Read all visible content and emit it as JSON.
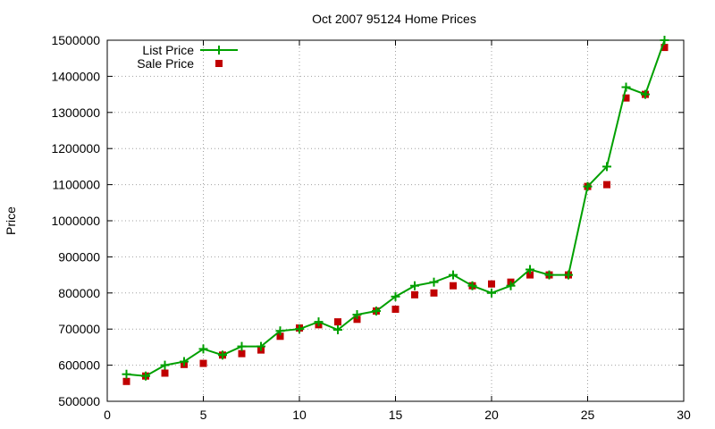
{
  "chart_data": {
    "type": "line",
    "title": "Oct 2007 95124 Home Prices",
    "xlabel": "",
    "ylabel": "Price",
    "xlim": [
      0,
      30
    ],
    "ylim": [
      500000,
      1500000
    ],
    "xticks": [
      0,
      5,
      10,
      15,
      20,
      25,
      30
    ],
    "yticks": [
      500000,
      600000,
      700000,
      800000,
      900000,
      1000000,
      1100000,
      1200000,
      1300000,
      1400000,
      1500000
    ],
    "grid": true,
    "legend_position": "top-left",
    "series": [
      {
        "name": "List Price",
        "style": "line+cross",
        "color": "#00a000",
        "x": [
          1,
          2,
          3,
          4,
          5,
          6,
          7,
          8,
          9,
          10,
          11,
          12,
          13,
          14,
          15,
          16,
          17,
          18,
          19,
          20,
          21,
          22,
          23,
          24,
          25,
          26,
          27,
          28,
          29
        ],
        "values": [
          575000,
          570000,
          600000,
          610000,
          645000,
          628000,
          652000,
          652000,
          695000,
          700000,
          720000,
          698000,
          740000,
          750000,
          790000,
          820000,
          830000,
          850000,
          820000,
          800000,
          820000,
          865000,
          850000,
          850000,
          1095000,
          1150000,
          1370000,
          1350000,
          1500000
        ]
      },
      {
        "name": "Sale Price",
        "style": "square",
        "color": "#c00000",
        "x": [
          1,
          2,
          3,
          4,
          5,
          6,
          7,
          8,
          9,
          10,
          11,
          12,
          13,
          14,
          15,
          16,
          17,
          18,
          19,
          20,
          21,
          22,
          23,
          24,
          25,
          26,
          27,
          28,
          29
        ],
        "values": [
          555000,
          570000,
          578000,
          602000,
          605000,
          628000,
          632000,
          642000,
          680000,
          703000,
          712000,
          720000,
          727000,
          750000,
          755000,
          795000,
          800000,
          820000,
          820000,
          825000,
          830000,
          850000,
          850000,
          850000,
          1095000,
          1100000,
          1340000,
          1350000,
          1480000
        ]
      }
    ]
  }
}
